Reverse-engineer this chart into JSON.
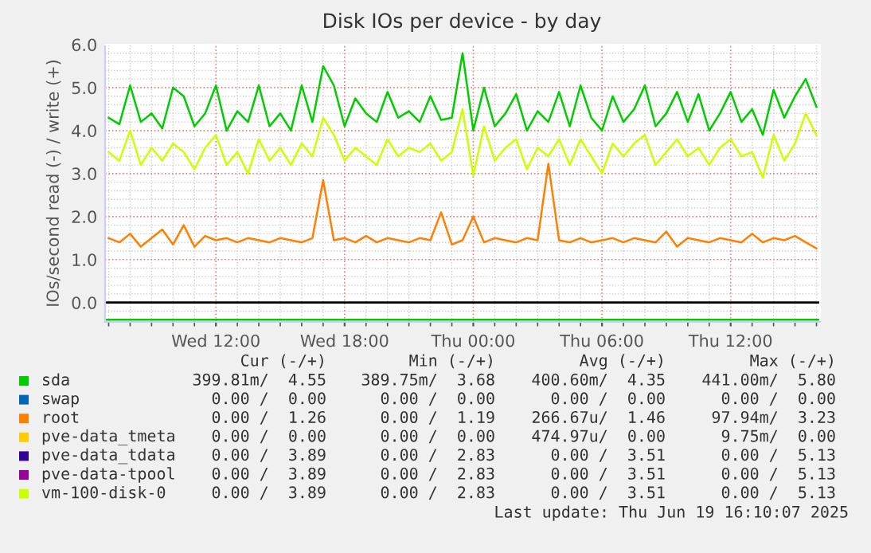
{
  "chart_data": {
    "type": "line",
    "title": "Disk IOs per device - by day",
    "ylabel": "IOs/second read (-) / write (+)",
    "xlim": [
      "2025-06-18T06:50",
      "2025-06-19T16:10"
    ],
    "xticks": [
      {
        "value": "2025-06-18T12:00",
        "label": "Wed 12:00"
      },
      {
        "value": "2025-06-18T18:00",
        "label": "Wed 18:00"
      },
      {
        "value": "2025-06-19T00:00",
        "label": "Thu 00:00"
      },
      {
        "value": "2025-06-19T06:00",
        "label": "Thu 06:00"
      },
      {
        "value": "2025-06-19T12:00",
        "label": "Thu 12:00"
      }
    ],
    "ylim": [
      -0.45,
      6.0
    ],
    "yticks": [
      {
        "value": 0,
        "label": "0.0"
      },
      {
        "value": 1,
        "label": "1.0"
      },
      {
        "value": 2,
        "label": "2.0"
      },
      {
        "value": 3,
        "label": "3.0"
      },
      {
        "value": 4,
        "label": "4.0"
      },
      {
        "value": 5,
        "label": "5.0"
      },
      {
        "value": 6,
        "label": "6.0"
      }
    ],
    "grid": true,
    "legend": "bottom",
    "marker": "none",
    "line_style": "solid",
    "ref_lines": [
      {
        "axis": "y",
        "value": 0,
        "color": "#000000"
      }
    ],
    "x": [
      "2025-06-18T07:00",
      "2025-06-18T07:30",
      "2025-06-18T08:00",
      "2025-06-18T08:30",
      "2025-06-18T09:00",
      "2025-06-18T09:30",
      "2025-06-18T10:00",
      "2025-06-18T10:30",
      "2025-06-18T11:00",
      "2025-06-18T11:30",
      "2025-06-18T12:00",
      "2025-06-18T12:30",
      "2025-06-18T13:00",
      "2025-06-18T13:30",
      "2025-06-18T14:00",
      "2025-06-18T14:30",
      "2025-06-18T15:00",
      "2025-06-18T15:30",
      "2025-06-18T16:00",
      "2025-06-18T16:30",
      "2025-06-18T17:00",
      "2025-06-18T17:30",
      "2025-06-18T18:00",
      "2025-06-18T18:30",
      "2025-06-18T19:00",
      "2025-06-18T19:30",
      "2025-06-18T20:00",
      "2025-06-18T20:30",
      "2025-06-18T21:00",
      "2025-06-18T21:30",
      "2025-06-18T22:00",
      "2025-06-18T22:30",
      "2025-06-18T23:00",
      "2025-06-18T23:30",
      "2025-06-19T00:00",
      "2025-06-19T00:30",
      "2025-06-19T01:00",
      "2025-06-19T01:30",
      "2025-06-19T02:00",
      "2025-06-19T02:30",
      "2025-06-19T03:00",
      "2025-06-19T03:30",
      "2025-06-19T04:00",
      "2025-06-19T04:30",
      "2025-06-19T05:00",
      "2025-06-19T05:30",
      "2025-06-19T06:00",
      "2025-06-19T06:30",
      "2025-06-19T07:00",
      "2025-06-19T07:30",
      "2025-06-19T08:00",
      "2025-06-19T08:30",
      "2025-06-19T09:00",
      "2025-06-19T09:30",
      "2025-06-19T10:00",
      "2025-06-19T10:30",
      "2025-06-19T11:00",
      "2025-06-19T11:30",
      "2025-06-19T12:00",
      "2025-06-19T12:30",
      "2025-06-19T13:00",
      "2025-06-19T13:30",
      "2025-06-19T14:00",
      "2025-06-19T14:30",
      "2025-06-19T15:00",
      "2025-06-19T15:30",
      "2025-06-19T16:00"
    ],
    "series": [
      {
        "color": "#00cc00",
        "x": [
          "2025-06-18T06:50",
          "2025-06-19T16:10"
        ],
        "values": [
          -0.4,
          -0.4
        ]
      },
      {
        "name": "sda",
        "color": "#00cc00",
        "values": [
          4.3,
          4.15,
          5.05,
          4.2,
          4.4,
          4.05,
          5.0,
          4.8,
          4.1,
          4.4,
          5.05,
          4.0,
          4.45,
          4.2,
          5.05,
          4.1,
          4.4,
          4.0,
          5.05,
          4.2,
          5.5,
          5.05,
          4.1,
          4.75,
          4.4,
          4.2,
          4.9,
          4.3,
          4.45,
          4.2,
          4.8,
          4.25,
          4.3,
          5.8,
          4.0,
          5.0,
          4.1,
          4.4,
          4.85,
          4.0,
          4.45,
          4.2,
          4.9,
          4.1,
          5.05,
          4.3,
          4.0,
          4.8,
          4.2,
          4.5,
          5.05,
          4.1,
          4.4,
          4.9,
          4.2,
          4.85,
          4.0,
          4.4,
          4.9,
          4.2,
          4.5,
          3.9,
          4.95,
          4.3,
          4.8,
          5.2,
          4.55
        ]
      },
      {
        "name": "swap",
        "color": "#0066b3",
        "values": [
          null,
          null,
          null,
          null,
          null,
          null,
          null,
          null,
          null,
          null,
          null,
          null,
          null,
          null,
          null,
          null,
          null,
          null,
          null,
          null,
          null,
          null,
          null,
          null,
          null,
          null,
          null,
          null,
          null,
          null,
          null,
          null,
          null,
          null,
          null,
          null,
          null,
          null,
          null,
          null,
          null,
          null,
          null,
          null,
          null,
          null,
          null,
          null,
          null,
          null,
          null,
          null,
          null,
          null,
          null,
          null,
          null,
          null,
          null,
          null,
          null,
          null,
          null,
          null,
          null,
          null,
          null
        ]
      },
      {
        "name": "root",
        "color": "#ff8000",
        "values": [
          1.5,
          1.4,
          1.6,
          1.3,
          1.5,
          1.7,
          1.35,
          1.8,
          1.3,
          1.55,
          1.45,
          1.5,
          1.4,
          1.5,
          1.45,
          1.4,
          1.5,
          1.45,
          1.4,
          1.5,
          2.85,
          1.45,
          1.5,
          1.4,
          1.55,
          1.4,
          1.5,
          1.45,
          1.4,
          1.5,
          1.45,
          2.1,
          1.35,
          1.45,
          2.0,
          1.4,
          1.5,
          1.45,
          1.4,
          1.5,
          1.45,
          3.23,
          1.45,
          1.4,
          1.5,
          1.4,
          1.45,
          1.5,
          1.4,
          1.5,
          1.45,
          1.4,
          1.65,
          1.3,
          1.5,
          1.45,
          1.4,
          1.5,
          1.45,
          1.4,
          1.6,
          1.4,
          1.5,
          1.45,
          1.55,
          1.4,
          1.26
        ]
      },
      {
        "name": "pve-data_tmeta",
        "color": "#ffcc00",
        "values": [
          null,
          null,
          null,
          null,
          null,
          null,
          null,
          null,
          null,
          null,
          null,
          null,
          null,
          null,
          null,
          null,
          null,
          null,
          null,
          null,
          null,
          null,
          null,
          null,
          null,
          null,
          null,
          null,
          null,
          null,
          null,
          null,
          null,
          null,
          null,
          null,
          null,
          null,
          null,
          null,
          null,
          null,
          null,
          null,
          null,
          null,
          null,
          null,
          null,
          null,
          null,
          null,
          null,
          null,
          null,
          null,
          null,
          null,
          null,
          null,
          null,
          null,
          null,
          null,
          null,
          null,
          null
        ]
      },
      {
        "name": "pve-data_tdata",
        "color": "#330099",
        "values": [
          null,
          null,
          null,
          null,
          null,
          null,
          null,
          null,
          null,
          null,
          null,
          null,
          null,
          null,
          null,
          null,
          null,
          null,
          null,
          null,
          null,
          null,
          null,
          null,
          null,
          null,
          null,
          null,
          null,
          null,
          null,
          null,
          null,
          null,
          null,
          null,
          null,
          null,
          null,
          null,
          null,
          null,
          null,
          null,
          null,
          null,
          null,
          null,
          null,
          null,
          null,
          null,
          null,
          null,
          null,
          null,
          null,
          null,
          null,
          null,
          null,
          null,
          null,
          null,
          null,
          null,
          null
        ]
      },
      {
        "name": "pve-data-tpool",
        "color": "#990099",
        "values": [
          null,
          null,
          null,
          null,
          null,
          null,
          null,
          null,
          null,
          null,
          null,
          null,
          null,
          null,
          null,
          null,
          null,
          null,
          null,
          null,
          null,
          null,
          null,
          null,
          null,
          null,
          null,
          null,
          null,
          null,
          null,
          null,
          null,
          null,
          null,
          null,
          null,
          null,
          null,
          null,
          null,
          null,
          null,
          null,
          null,
          null,
          null,
          null,
          null,
          null,
          null,
          null,
          null,
          null,
          null,
          null,
          null,
          null,
          null,
          null,
          null,
          null,
          null,
          null,
          null,
          null,
          null
        ]
      },
      {
        "name": "vm-100-disk-0",
        "color": "#ccff00",
        "values": [
          3.5,
          3.3,
          4.0,
          3.2,
          3.6,
          3.3,
          3.7,
          3.5,
          3.1,
          3.6,
          3.9,
          3.2,
          3.5,
          3.0,
          3.8,
          3.3,
          3.6,
          3.2,
          3.7,
          3.4,
          4.3,
          3.9,
          3.3,
          3.6,
          3.4,
          3.2,
          3.8,
          3.4,
          3.6,
          3.5,
          3.7,
          3.3,
          3.5,
          4.5,
          2.95,
          4.1,
          3.3,
          3.6,
          3.8,
          3.1,
          3.6,
          3.4,
          3.8,
          3.2,
          3.8,
          3.4,
          3.0,
          3.7,
          3.4,
          3.7,
          3.9,
          3.2,
          3.5,
          3.8,
          3.4,
          3.6,
          3.2,
          3.6,
          3.8,
          3.4,
          3.5,
          2.9,
          3.9,
          3.3,
          3.7,
          4.4,
          3.89
        ]
      }
    ],
    "annotations": [
      "Cur (-/+)",
      "Min (-/+)",
      "Avg (-/+)",
      "Max (-/+)",
      "399.81m/  4.55",
      "389.75m/  3.68",
      "400.60m/  4.35",
      "441.00m/  5.80",
      "0.00 /  0.00",
      "0.00 /  0.00",
      "0.00 /  0.00",
      "0.00 /  0.00",
      "0.00 /  1.26",
      "0.00 /  1.19",
      "266.67u/  1.46",
      "97.94m/  3.23",
      "0.00 /  0.00",
      "0.00 /  0.00",
      "474.97u/  0.00",
      "9.75m/  0.00",
      "0.00 /  3.89",
      "0.00 /  2.83",
      "0.00 /  3.51",
      "0.00 /  5.13",
      "0.00 /  3.89",
      "0.00 /  2.83",
      "0.00 /  3.51",
      "0.00 /  5.13",
      "0.00 /  3.89",
      "0.00 /  2.83",
      "0.00 /  3.51",
      "0.00 /  5.13",
      "Last update: Thu Jun 19 16:10:07 2025"
    ]
  }
}
